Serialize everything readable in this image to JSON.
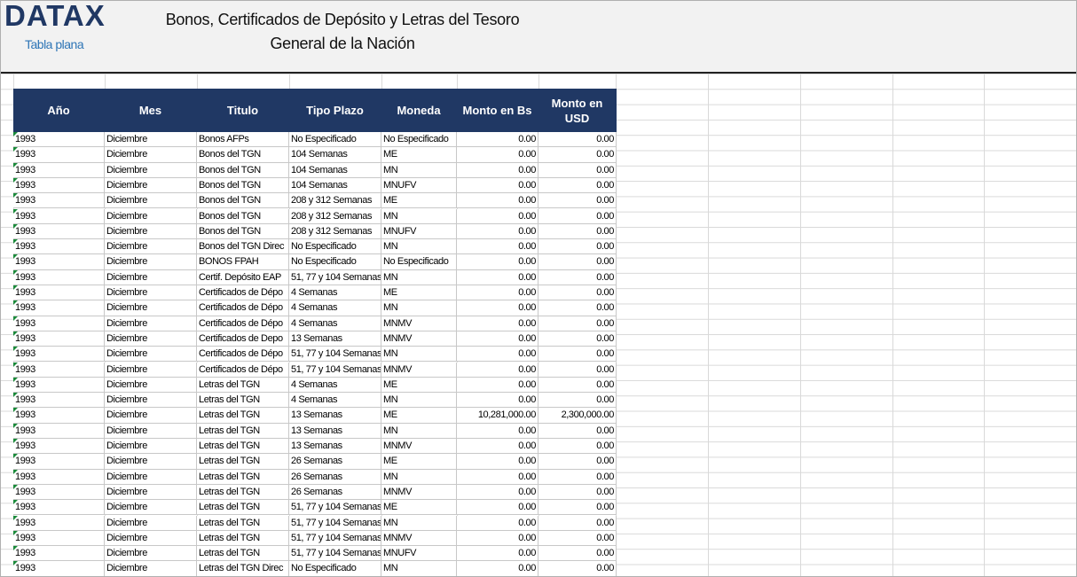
{
  "header": {
    "logo": "DATAX",
    "subtitle": "Tabla plana",
    "title_line1": "Bonos, Certificados de Depósito y Letras del Tesoro",
    "title_line2": "General de la Nación"
  },
  "table": {
    "columns": [
      "Año",
      "Mes",
      "Titulo",
      "Tipo Plazo",
      "Moneda",
      "Monto en Bs",
      "Monto en USD"
    ],
    "rows": [
      [
        "1993",
        "Diciembre",
        "Bonos AFPs",
        "No Especificado",
        "No Especificado",
        "0.00",
        "0.00"
      ],
      [
        "1993",
        "Diciembre",
        "Bonos del TGN",
        "104 Semanas",
        "ME",
        "0.00",
        "0.00"
      ],
      [
        "1993",
        "Diciembre",
        "Bonos del TGN",
        "104 Semanas",
        "MN",
        "0.00",
        "0.00"
      ],
      [
        "1993",
        "Diciembre",
        "Bonos del TGN",
        "104 Semanas",
        "MNUFV",
        "0.00",
        "0.00"
      ],
      [
        "1993",
        "Diciembre",
        "Bonos del TGN",
        "208 y 312 Semanas",
        "ME",
        "0.00",
        "0.00"
      ],
      [
        "1993",
        "Diciembre",
        "Bonos del TGN",
        "208 y 312 Semanas",
        "MN",
        "0.00",
        "0.00"
      ],
      [
        "1993",
        "Diciembre",
        "Bonos del TGN",
        "208 y 312 Semanas",
        "MNUFV",
        "0.00",
        "0.00"
      ],
      [
        "1993",
        "Diciembre",
        "Bonos del TGN Direc",
        "No Especificado",
        "MN",
        "0.00",
        "0.00"
      ],
      [
        "1993",
        "Diciembre",
        "BONOS FPAH",
        "No Especificado",
        "No Especificado",
        "0.00",
        "0.00"
      ],
      [
        "1993",
        "Diciembre",
        "Certif. Depósito EAP",
        "51, 77 y 104 Semanas",
        "MN",
        "0.00",
        "0.00"
      ],
      [
        "1993",
        "Diciembre",
        "Certificados de Dépo",
        "4 Semanas",
        "ME",
        "0.00",
        "0.00"
      ],
      [
        "1993",
        "Diciembre",
        "Certificados de Dépo",
        "4 Semanas",
        "MN",
        "0.00",
        "0.00"
      ],
      [
        "1993",
        "Diciembre",
        "Certificados de Dépo",
        "4 Semanas",
        "MNMV",
        "0.00",
        "0.00"
      ],
      [
        "1993",
        "Diciembre",
        "Certificados de Depo",
        "13 Semanas",
        "MNMV",
        "0.00",
        "0.00"
      ],
      [
        "1993",
        "Diciembre",
        "Certificados de Dépo",
        "51, 77 y 104 Semanas",
        "MN",
        "0.00",
        "0.00"
      ],
      [
        "1993",
        "Diciembre",
        "Certificados de Dépo",
        "51, 77 y 104 Semanas",
        "MNMV",
        "0.00",
        "0.00"
      ],
      [
        "1993",
        "Diciembre",
        "Letras del TGN",
        "4 Semanas",
        "ME",
        "0.00",
        "0.00"
      ],
      [
        "1993",
        "Diciembre",
        "Letras del TGN",
        "4 Semanas",
        "MN",
        "0.00",
        "0.00"
      ],
      [
        "1993",
        "Diciembre",
        "Letras del TGN",
        "13 Semanas",
        "ME",
        "10,281,000.00",
        "2,300,000.00"
      ],
      [
        "1993",
        "Diciembre",
        "Letras del TGN",
        "13 Semanas",
        "MN",
        "0.00",
        "0.00"
      ],
      [
        "1993",
        "Diciembre",
        "Letras del TGN",
        "13 Semanas",
        "MNMV",
        "0.00",
        "0.00"
      ],
      [
        "1993",
        "Diciembre",
        "Letras del TGN",
        "26 Semanas",
        "ME",
        "0.00",
        "0.00"
      ],
      [
        "1993",
        "Diciembre",
        "Letras del TGN",
        "26 Semanas",
        "MN",
        "0.00",
        "0.00"
      ],
      [
        "1993",
        "Diciembre",
        "Letras del TGN",
        "26 Semanas",
        "MNMV",
        "0.00",
        "0.00"
      ],
      [
        "1993",
        "Diciembre",
        "Letras del TGN",
        "51, 77 y 104 Semanas",
        "ME",
        "0.00",
        "0.00"
      ],
      [
        "1993",
        "Diciembre",
        "Letras del TGN",
        "51, 77 y 104 Semanas",
        "MN",
        "0.00",
        "0.00"
      ],
      [
        "1993",
        "Diciembre",
        "Letras del TGN",
        "51, 77 y 104 Semanas",
        "MNMV",
        "0.00",
        "0.00"
      ],
      [
        "1993",
        "Diciembre",
        "Letras del TGN",
        "51, 77 y 104 Semanas",
        "MNUFV",
        "0.00",
        "0.00"
      ],
      [
        "1993",
        "Diciembre",
        "Letras del TGN Direc",
        "No Especificado",
        "MN",
        "0.00",
        "0.00"
      ]
    ]
  }
}
